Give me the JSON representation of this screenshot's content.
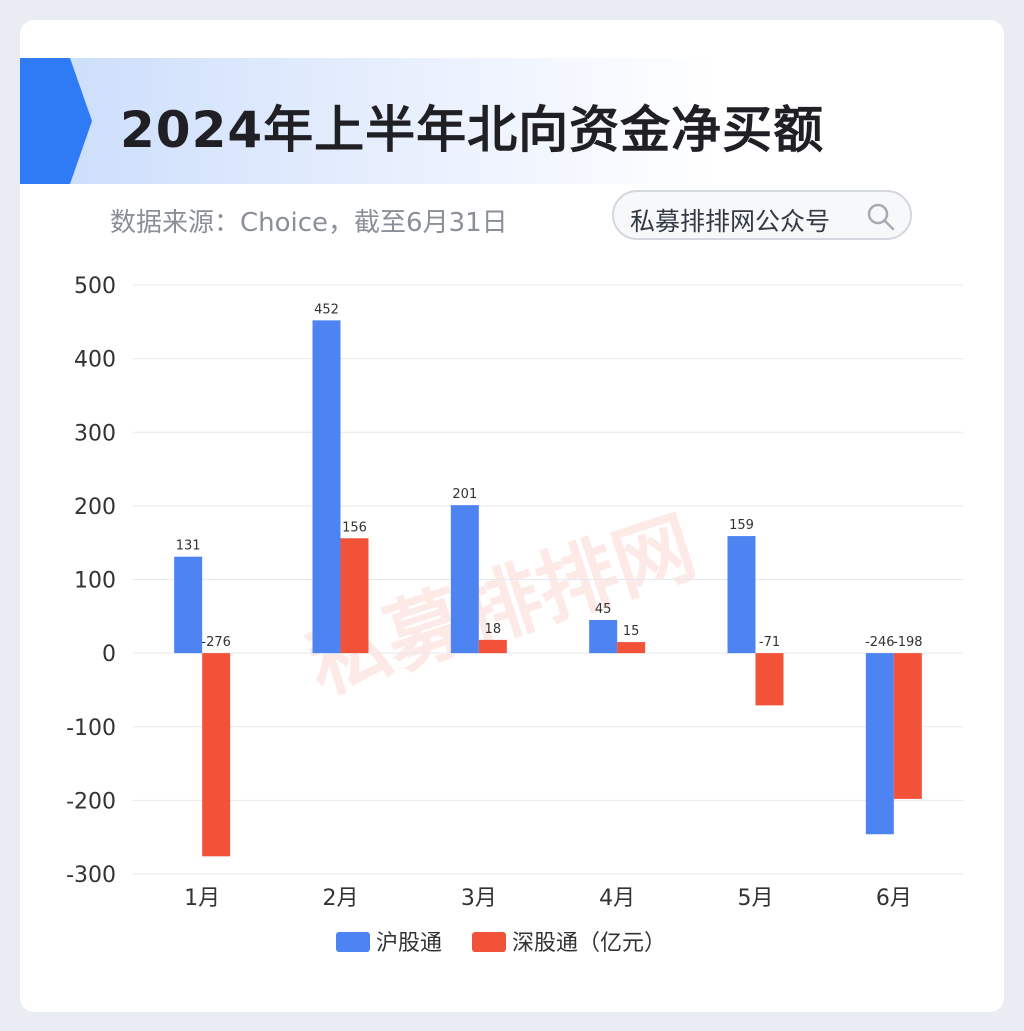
{
  "header": {
    "title": "2024年上半年北向资金净买额",
    "source_note": "数据来源：Choice，截至6月31日",
    "badge_label": "私募排排网公众号",
    "badge_icon": "search-icon",
    "watermark": "私募排排网"
  },
  "colors": {
    "series_1": "#4e84f2",
    "series_2": "#f25238",
    "accent": "#2f7af5",
    "grid": "#e6e9ef",
    "axis_text": "#333333"
  },
  "chart_data": {
    "type": "bar",
    "categories": [
      "1月",
      "2月",
      "3月",
      "4月",
      "5月",
      "6月"
    ],
    "series": [
      {
        "name": "沪股通",
        "values": [
          131,
          452,
          201,
          45,
          159,
          -246
        ]
      },
      {
        "name": "深股通（亿元）",
        "values": [
          -276,
          156,
          18,
          15,
          -71,
          -198
        ]
      }
    ],
    "ylim": [
      -300,
      500
    ],
    "yticks": [
      500,
      400,
      300,
      200,
      100,
      0,
      -100,
      -200,
      -300
    ],
    "grid": true,
    "legend_position": "bottom-center",
    "data_labels": true
  }
}
